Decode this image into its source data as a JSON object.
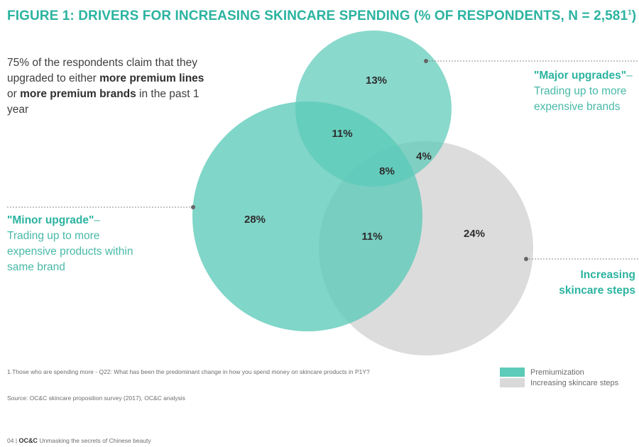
{
  "title_main": "FIGURE 1: DRIVERS FOR INCREASING SKINCARE SPENDING (% OF RESPONDENTS, N = 2,581",
  "title_sup": "1",
  "title_close": ")",
  "intro": {
    "t1": "75% of the respondents claim that they upgraded to either ",
    "b1": "more premium lines",
    "t2": " or ",
    "b2": "more premium brands",
    "t3": " in the past 1 year"
  },
  "callouts": {
    "major_head": "\"Major upgrades\"",
    "major_dash": "–",
    "major_body": "Trading up to more expensive brands",
    "minor_head": "\"Minor upgrade\"",
    "minor_dash": "–",
    "minor_body": "Trading up to more expensive products within same brand",
    "steps": "Increasing skincare steps"
  },
  "chart_data": {
    "type": "venn",
    "sets": [
      "Major upgrades",
      "Minor upgrade",
      "Increasing skincare steps"
    ],
    "regions": [
      {
        "sets": [
          "Major upgrades"
        ],
        "label": "13%",
        "value": 13
      },
      {
        "sets": [
          "Major upgrades",
          "Minor upgrade"
        ],
        "label": "11%",
        "value": 11
      },
      {
        "sets": [
          "Major upgrades",
          "Increasing skincare steps"
        ],
        "label": "4%",
        "value": 4
      },
      {
        "sets": [
          "Major upgrades",
          "Minor upgrade",
          "Increasing skincare steps"
        ],
        "label": "8%",
        "value": 8
      },
      {
        "sets": [
          "Minor upgrade"
        ],
        "label": "28%",
        "value": 28
      },
      {
        "sets": [
          "Minor upgrade",
          "Increasing skincare steps"
        ],
        "label": "11%",
        "value": 11
      },
      {
        "sets": [
          "Increasing skincare steps"
        ],
        "label": "24%",
        "value": 24
      }
    ],
    "legend": [
      {
        "label": "Premiumization",
        "color": "#5ccbb8"
      },
      {
        "label": "Increasing skincare steps",
        "color": "#d9d9d9"
      }
    ]
  },
  "footnotes": {
    "note": "1.Those who are spending more - Q22: What has been the predominant change in how you spend money on skincare products in P1Y?",
    "source": "Source: OC&C skincare proposition survey (2017), OC&C analysis"
  },
  "bottom": {
    "page": "04",
    "sep": "|",
    "brand": "OC&C",
    "doc": "Unmasking the secrets of Chinese beauty"
  },
  "colors": {
    "teal_accent": "#2bb3a0",
    "teal_circle": "#5ccbb8",
    "grey_circle": "#d6d6d6"
  }
}
